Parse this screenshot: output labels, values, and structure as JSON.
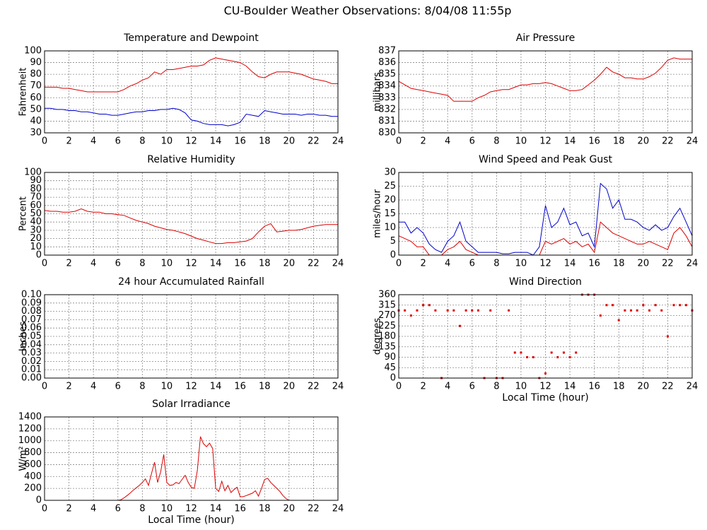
{
  "title": "CU-Boulder Weather Observations: 8/04/08 11:55p",
  "chart_data": [
    {
      "type": "line",
      "title": "Temperature and Dewpoint",
      "ylabel": "Fahrenheit",
      "x": [
        0,
        0.5,
        1,
        1.5,
        2,
        2.5,
        3,
        3.5,
        4,
        4.5,
        5,
        5.5,
        6,
        6.5,
        7,
        7.5,
        8,
        8.5,
        9,
        9.5,
        10,
        10.5,
        11,
        11.5,
        12,
        12.5,
        13,
        13.5,
        14,
        14.5,
        15,
        15.5,
        16,
        16.5,
        17,
        17.5,
        18,
        18.5,
        19,
        19.5,
        20,
        20.5,
        21,
        21.5,
        22,
        22.5,
        23,
        23.5,
        24
      ],
      "series": [
        {
          "color": "#dd0000",
          "values": [
            69,
            69,
            69,
            68,
            68,
            67,
            66,
            65,
            65,
            65,
            65,
            65,
            65,
            67,
            70,
            72,
            75,
            77,
            82,
            80,
            84,
            84,
            85,
            86,
            87,
            87,
            88,
            92,
            94,
            93,
            92,
            91,
            90,
            87,
            82,
            78,
            77,
            80,
            82,
            82,
            82,
            81,
            80,
            78,
            76,
            75,
            74,
            72,
            72
          ]
        },
        {
          "color": "#0000cc",
          "values": [
            51,
            51,
            50,
            50,
            49,
            49,
            48,
            48,
            47,
            46,
            46,
            45,
            45,
            46,
            47,
            48,
            48,
            49,
            49,
            50,
            50,
            51,
            50,
            47,
            41,
            40,
            38,
            37,
            37,
            37,
            36,
            37,
            39,
            46,
            45,
            44,
            49,
            48,
            47,
            46,
            46,
            46,
            45,
            46,
            46,
            45,
            45,
            44,
            44
          ]
        }
      ],
      "xlim": [
        0,
        24
      ],
      "xticks": [
        0,
        2,
        4,
        6,
        8,
        10,
        12,
        14,
        16,
        18,
        20,
        22,
        24
      ],
      "ylim": [
        30,
        100
      ],
      "yticks": [
        30,
        40,
        50,
        60,
        70,
        80,
        90,
        100
      ],
      "grid": true
    },
    {
      "type": "line",
      "title": "Air Pressure",
      "ylabel": "millibars",
      "x": [
        0,
        0.5,
        1,
        1.5,
        2,
        2.5,
        3,
        3.5,
        4,
        4.5,
        5,
        5.5,
        6,
        6.5,
        7,
        7.5,
        8,
        8.5,
        9,
        9.5,
        10,
        10.5,
        11,
        11.5,
        12,
        12.5,
        13,
        13.5,
        14,
        14.5,
        15,
        15.5,
        16,
        16.5,
        17,
        17.5,
        18,
        18.5,
        19,
        19.5,
        20,
        20.5,
        21,
        21.5,
        22,
        22.5,
        23,
        23.5,
        24
      ],
      "series": [
        {
          "color": "#dd0000",
          "values": [
            834.4,
            834.1,
            833.8,
            833.7,
            833.6,
            833.5,
            833.4,
            833.3,
            833.2,
            832.7,
            832.7,
            832.7,
            832.7,
            833.0,
            833.2,
            833.5,
            833.6,
            833.7,
            833.7,
            833.9,
            834.1,
            834.1,
            834.2,
            834.2,
            834.3,
            834.2,
            834.0,
            833.8,
            833.6,
            833.6,
            833.7,
            834.1,
            834.5,
            835.0,
            835.6,
            835.2,
            835.0,
            834.7,
            834.7,
            834.6,
            834.6,
            834.8,
            835.1,
            835.6,
            836.2,
            836.4,
            836.3,
            836.3,
            836.3
          ]
        }
      ],
      "xlim": [
        0,
        24
      ],
      "xticks": [
        0,
        2,
        4,
        6,
        8,
        10,
        12,
        14,
        16,
        18,
        20,
        22,
        24
      ],
      "ylim": [
        830,
        837
      ],
      "yticks": [
        830,
        831,
        832,
        833,
        834,
        835,
        836,
        837
      ],
      "grid": true
    },
    {
      "type": "line",
      "title": "Relative Humidity",
      "ylabel": "Percent",
      "x": [
        0,
        0.5,
        1,
        1.5,
        2,
        2.5,
        3,
        3.5,
        4,
        4.5,
        5,
        5.5,
        6,
        6.5,
        7,
        7.5,
        8,
        8.5,
        9,
        9.5,
        10,
        10.5,
        11,
        11.5,
        12,
        12.5,
        13,
        13.5,
        14,
        14.5,
        15,
        15.5,
        16,
        16.5,
        17,
        17.5,
        18,
        18.5,
        19,
        19.5,
        20,
        20.5,
        21,
        21.5,
        22,
        22.5,
        23,
        23.5,
        24
      ],
      "series": [
        {
          "color": "#dd0000",
          "values": [
            54,
            53,
            53,
            52,
            52,
            53,
            56,
            53,
            52,
            52,
            50,
            50,
            49,
            48,
            45,
            42,
            40,
            38,
            35,
            33,
            31,
            30,
            28,
            26,
            23,
            20,
            18,
            16,
            14,
            14,
            15,
            15,
            16,
            17,
            20,
            28,
            35,
            38,
            28,
            29,
            30,
            30,
            31,
            33,
            35,
            36,
            37,
            37,
            37
          ]
        }
      ],
      "xlim": [
        0,
        24
      ],
      "xticks": [
        0,
        2,
        4,
        6,
        8,
        10,
        12,
        14,
        16,
        18,
        20,
        22,
        24
      ],
      "ylim": [
        0,
        100
      ],
      "yticks": [
        0,
        10,
        20,
        30,
        40,
        50,
        60,
        70,
        80,
        90,
        100
      ],
      "grid": true
    },
    {
      "type": "line",
      "title": "Wind Speed and Peak Gust",
      "ylabel": "miles/hour",
      "x": [
        0,
        0.5,
        1,
        1.5,
        2,
        2.5,
        3,
        3.5,
        4,
        4.5,
        5,
        5.5,
        6,
        6.5,
        7,
        7.5,
        8,
        8.5,
        9,
        9.5,
        10,
        10.5,
        11,
        11.5,
        12,
        12.5,
        13,
        13.5,
        14,
        14.5,
        15,
        15.5,
        16,
        16.5,
        17,
        17.5,
        18,
        18.5,
        19,
        19.5,
        20,
        20.5,
        21,
        21.5,
        22,
        22.5,
        23,
        23.5,
        24
      ],
      "series": [
        {
          "color": "#0000cc",
          "values": [
            12,
            12,
            8,
            10,
            8,
            4,
            2,
            1,
            5,
            7,
            12,
            5,
            3,
            1,
            1,
            1,
            1,
            0.5,
            0.5,
            1,
            1,
            1,
            0,
            3,
            18,
            10,
            12,
            17,
            11,
            12,
            7,
            8,
            3,
            26,
            24,
            17,
            20,
            13,
            13,
            12,
            10,
            9,
            11,
            9,
            10,
            14,
            17,
            12,
            7
          ]
        },
        {
          "color": "#dd0000",
          "values": [
            7,
            6,
            5,
            3,
            3,
            0,
            0,
            0,
            2,
            3,
            5,
            2,
            1,
            0,
            0,
            0,
            0,
            0,
            0,
            0,
            0,
            0,
            0,
            0,
            5,
            4,
            5,
            6,
            4,
            5,
            3,
            4,
            1,
            12,
            10,
            8,
            7,
            6,
            5,
            4,
            4,
            5,
            4,
            3,
            2,
            8,
            10,
            7,
            3
          ]
        }
      ],
      "xlim": [
        0,
        24
      ],
      "xticks": [
        0,
        2,
        4,
        6,
        8,
        10,
        12,
        14,
        16,
        18,
        20,
        22,
        24
      ],
      "ylim": [
        0,
        30
      ],
      "yticks": [
        0,
        5,
        10,
        15,
        20,
        25,
        30
      ],
      "grid": true
    },
    {
      "type": "line",
      "title": "24 hour Accumulated Rainfall",
      "ylabel": "Inches",
      "x": [
        0,
        24
      ],
      "series": [
        {
          "color": "#dd0000",
          "values": [
            0,
            0
          ]
        }
      ],
      "xlim": [
        0,
        24
      ],
      "xticks": [
        0,
        2,
        4,
        6,
        8,
        10,
        12,
        14,
        16,
        18,
        20,
        22,
        24
      ],
      "ylim": [
        0,
        0.1
      ],
      "yticks": [
        {
          "value": 0,
          "label": "0.00"
        },
        0.01,
        0.02,
        0.03,
        0.04,
        0.05,
        0.06,
        0.07,
        0.08,
        0.09,
        {
          "value": 0.1,
          "label": "0.10"
        }
      ],
      "grid": true
    },
    {
      "type": "scatter",
      "title": "Wind Direction",
      "ylabel": "degrees",
      "xlabel": "Local Time (hour)",
      "x": [
        0,
        0.5,
        1,
        1.5,
        2,
        2.5,
        3,
        3.5,
        4,
        4.5,
        5,
        5.5,
        6,
        6.5,
        7,
        7.5,
        8,
        8.5,
        9,
        9.5,
        10,
        10.5,
        11,
        11.5,
        12,
        12.5,
        13,
        13.5,
        14,
        14.5,
        15,
        15.5,
        16,
        16.5,
        17,
        17.5,
        18,
        18.5,
        19,
        19.5,
        20,
        20.5,
        21,
        21.5,
        22,
        22.5,
        23,
        23.5,
        24
      ],
      "series": [
        {
          "color": "#dd0000",
          "values": [
            292,
            292,
            270,
            292,
            315,
            315,
            292,
            0,
            292,
            292,
            225,
            292,
            292,
            292,
            0,
            292,
            0,
            0,
            292,
            110,
            110,
            90,
            90,
            0,
            20,
            110,
            90,
            110,
            90,
            110,
            360,
            360,
            360,
            270,
            315,
            315,
            250,
            292,
            292,
            292,
            315,
            292,
            315,
            292,
            180,
            315,
            315,
            315,
            292
          ]
        }
      ],
      "xlim": [
        0,
        24
      ],
      "xticks": [
        0,
        2,
        4,
        6,
        8,
        10,
        12,
        14,
        16,
        18,
        20,
        22,
        24
      ],
      "ylim": [
        0,
        360
      ],
      "yticks": [
        0,
        45,
        90,
        135,
        180,
        225,
        270,
        315,
        360
      ],
      "grid": true
    },
    {
      "type": "line",
      "title": "Solar Irradiance",
      "ylabel": "W/m²",
      "xlabel": "Local Time (hour)",
      "x": [
        0,
        6,
        6.25,
        6.5,
        6.75,
        7,
        7.25,
        7.5,
        7.75,
        8,
        8.25,
        8.5,
        8.75,
        9,
        9.25,
        9.5,
        9.75,
        10,
        10.25,
        10.5,
        10.75,
        11,
        11.25,
        11.5,
        11.75,
        12,
        12.25,
        12.5,
        12.75,
        13,
        13.25,
        13.5,
        13.75,
        14,
        14.25,
        14.5,
        14.75,
        15,
        15.25,
        15.5,
        15.75,
        16,
        16.25,
        16.5,
        16.75,
        17,
        17.25,
        17.5,
        17.75,
        18,
        18.25,
        18.5,
        18.75,
        19,
        19.25,
        19.5,
        19.75,
        20,
        24
      ],
      "series": [
        {
          "color": "#dd0000",
          "values": [
            0,
            0,
            10,
            40,
            80,
            120,
            170,
            210,
            250,
            300,
            360,
            250,
            450,
            640,
            300,
            480,
            770,
            300,
            250,
            260,
            300,
            280,
            350,
            420,
            300,
            220,
            200,
            500,
            1070,
            950,
            900,
            960,
            870,
            200,
            150,
            320,
            160,
            250,
            130,
            180,
            220,
            60,
            60,
            80,
            100,
            120,
            160,
            70,
            200,
            350,
            370,
            300,
            250,
            200,
            150,
            80,
            30,
            0,
            0
          ]
        }
      ],
      "xlim": [
        0,
        24
      ],
      "xticks": [
        0,
        2,
        4,
        6,
        8,
        10,
        12,
        14,
        16,
        18,
        20,
        22,
        24
      ],
      "ylim": [
        0,
        1400
      ],
      "yticks": [
        0,
        200,
        400,
        600,
        800,
        1000,
        1200,
        1400
      ],
      "grid": true
    }
  ]
}
